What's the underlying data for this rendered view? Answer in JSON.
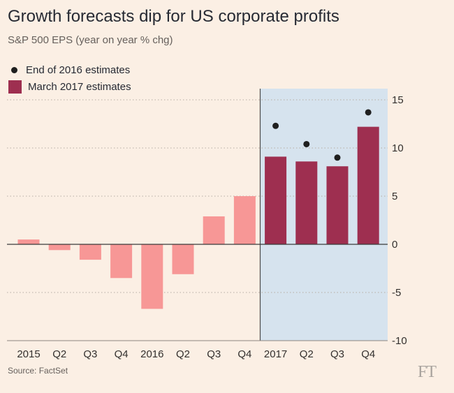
{
  "title": "Growth forecasts dip for US corporate profits",
  "subtitle": "S&P 500 EPS (year on year % chg)",
  "legend": {
    "dots": "End of 2016 estimates",
    "bars": "March 2017 estimates"
  },
  "source": "Source: FactSet",
  "logo": "FT",
  "colors": {
    "background": "#fbefe4",
    "highlight_region": "#d6e3ee",
    "past_bars": "#f79796",
    "forecast_bars": "#9e2f50",
    "dots": "#1f1f1f"
  },
  "chart_data": {
    "type": "bar",
    "categories": [
      "2015",
      "Q2",
      "Q3",
      "Q4",
      "2016",
      "Q2",
      "Q3",
      "Q4",
      "2017",
      "Q2",
      "Q3",
      "Q4"
    ],
    "series": [
      {
        "name": "March 2017 estimates",
        "values": [
          0.5,
          -0.6,
          -1.6,
          -3.5,
          -6.7,
          -3.1,
          2.9,
          5.0,
          9.1,
          8.6,
          8.1,
          12.2
        ],
        "note_colors": "first eight bars actual (light red), last four forecast (dark red)"
      },
      {
        "name": "End of 2016 estimates",
        "type": "scatter",
        "x": [
          "2017",
          "Q2",
          "Q3",
          "Q4"
        ],
        "values": [
          12.3,
          10.4,
          9.0,
          13.7
        ]
      }
    ],
    "yticks": [
      15,
      10,
      5,
      0,
      -5,
      -10
    ],
    "ylim": [
      -10,
      15
    ],
    "y_axis_side": "right",
    "highlight_from": "2017",
    "grid": "dotted horizontal"
  }
}
